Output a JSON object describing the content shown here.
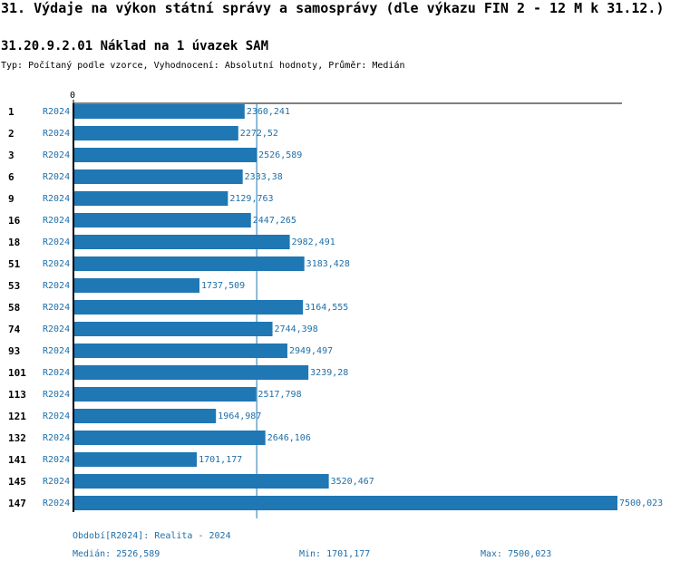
{
  "header": {
    "title": "31. Výdaje na výkon státní správy a samosprávy (dle výkazu FIN 2 - 12 M k 31.12.)",
    "subtitle": "31.20.9.2.01 Náklad na 1 úvazek SAM",
    "type_line": "Typ: Počítaný podle vzorce, Vyhodnocení: Absolutní hodnoty, Průměr: Medián"
  },
  "colors": {
    "bar": "#1f77b4",
    "accent_text": "#1f6fa8",
    "median_line": "#1f77b4",
    "axis": "#000000"
  },
  "chart_data": {
    "type": "bar",
    "orientation": "horizontal",
    "axis_zero_label": "0",
    "xlim": [
      0,
      7500.023
    ],
    "median": 2526.589,
    "categories": [
      "1",
      "2",
      "3",
      "6",
      "9",
      "16",
      "18",
      "51",
      "53",
      "58",
      "74",
      "93",
      "101",
      "113",
      "121",
      "132",
      "141",
      "145",
      "147"
    ],
    "period_labels": [
      "R2024",
      "R2024",
      "R2024",
      "R2024",
      "R2024",
      "R2024",
      "R2024",
      "R2024",
      "R2024",
      "R2024",
      "R2024",
      "R2024",
      "R2024",
      "R2024",
      "R2024",
      "R2024",
      "R2024",
      "R2024",
      "R2024"
    ],
    "values": [
      2360.241,
      2272.52,
      2526.589,
      2333.38,
      2129.763,
      2447.265,
      2982.491,
      3183.428,
      1737.509,
      3164.555,
      2744.398,
      2949.497,
      3239.28,
      2517.798,
      1964.987,
      2646.106,
      1701.177,
      3520.467,
      7500.023
    ],
    "value_labels": [
      "2360,241",
      "2272,52",
      "2526,589",
      "2333,38",
      "2129,763",
      "2447,265",
      "2982,491",
      "3183,428",
      "1737,509",
      "3164,555",
      "2744,398",
      "2949,497",
      "3239,28",
      "2517,798",
      "1964,987",
      "2646,106",
      "1701,177",
      "3520,467",
      "7500,023"
    ]
  },
  "footer": {
    "period": "Období[R2024]: Realita - 2024",
    "median": "Medián: 2526,589",
    "min": "Min: 1701,177",
    "max": "Max: 7500,023"
  }
}
